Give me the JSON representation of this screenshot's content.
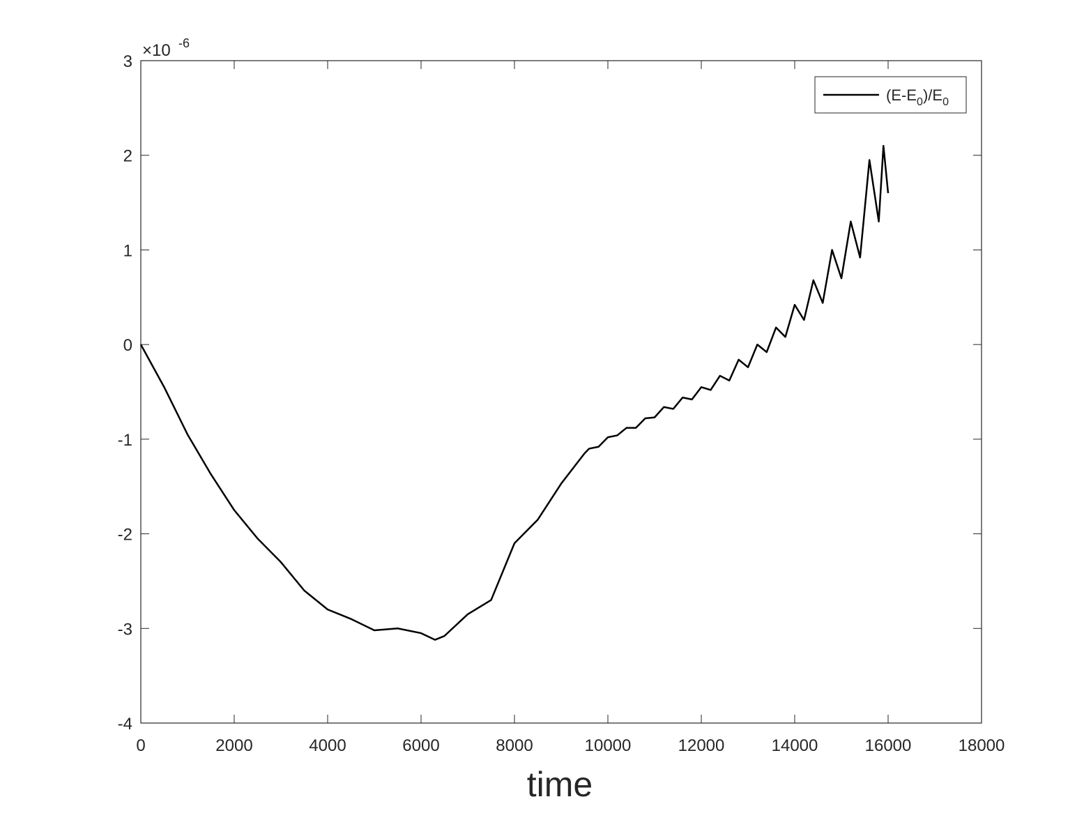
{
  "chart_data": {
    "type": "line",
    "xlabel": "time",
    "y_exponent_base": "×10",
    "y_exponent": "-6",
    "x": [
      0,
      500,
      1000,
      1500,
      2000,
      2500,
      3000,
      3500,
      4000,
      4500,
      5000,
      5500,
      6000,
      6300,
      6500,
      7000,
      7500,
      8000,
      8500,
      9000,
      9500,
      9600,
      9800,
      10000,
      10200,
      10400,
      10600,
      10800,
      11000,
      11200,
      11400,
      11600,
      11800,
      12000,
      12200,
      12400,
      12600,
      12800,
      13000,
      13200,
      13400,
      13600,
      13800,
      14000,
      14200,
      14400,
      14600,
      14800,
      15000,
      15200,
      15400,
      15600,
      15800,
      15900,
      16000
    ],
    "series": [
      {
        "name": "(E-E0)/E0",
        "color": "#000000",
        "values": [
          0,
          -0.45,
          -0.95,
          -1.37,
          -1.75,
          -2.05,
          -2.3,
          -2.6,
          -2.8,
          -2.9,
          -3.02,
          -3.0,
          -3.05,
          -3.12,
          -3.08,
          -2.85,
          -2.7,
          -2.1,
          -1.85,
          -1.47,
          -1.15,
          -1.1,
          -1.08,
          -0.98,
          -0.96,
          -0.88,
          -0.88,
          -0.78,
          -0.77,
          -0.66,
          -0.68,
          -0.56,
          -0.58,
          -0.45,
          -0.48,
          -0.33,
          -0.38,
          -0.16,
          -0.24,
          0.0,
          -0.08,
          0.18,
          0.08,
          0.42,
          0.26,
          0.68,
          0.44,
          1.0,
          0.7,
          1.3,
          0.92,
          1.95,
          1.3,
          2.1,
          1.6
        ]
      }
    ],
    "xlim": [
      0,
      18000
    ],
    "xticks": [
      0,
      2000,
      4000,
      6000,
      8000,
      10000,
      12000,
      14000,
      16000,
      18000
    ],
    "ylim": [
      -4,
      3
    ],
    "yticks": [
      -4,
      -3,
      -2,
      -1,
      0,
      1,
      2,
      3
    ],
    "legend": "upper right",
    "grid": false
  }
}
